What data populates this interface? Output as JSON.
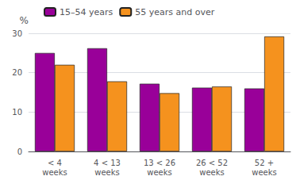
{
  "chart_data": {
    "type": "bar",
    "categories": [
      "< 4\nweeks",
      "4 < 13\nweeks",
      "13 < 26\nweeks",
      "26 < 52\nweeks",
      "52 +\nweeks"
    ],
    "series": [
      {
        "name": "15–54 years",
        "color": "#990099",
        "values": [
          25.0,
          26.2,
          17.2,
          16.2,
          16.0
        ]
      },
      {
        "name": "55 years and over",
        "color": "#F5921E",
        "values": [
          22.0,
          17.8,
          14.8,
          16.5,
          29.2
        ]
      }
    ],
    "ylabel": "%",
    "ylim": [
      0,
      30
    ],
    "yticks": [
      0,
      10,
      20,
      30
    ],
    "grid": true,
    "legend": "upper left"
  }
}
